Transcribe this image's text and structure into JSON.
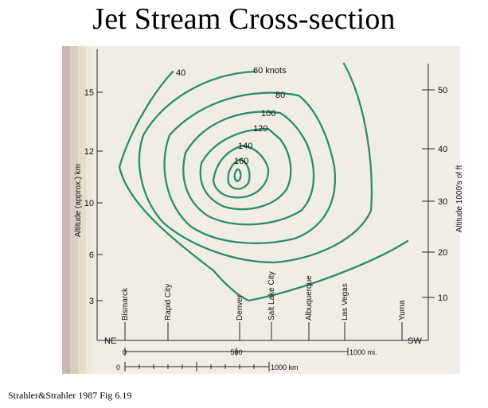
{
  "title": "Jet Stream Cross-section",
  "caption": "Strahler&Strahler 1987 Fig 6.19",
  "colors": {
    "isotach": "#2e8b6b",
    "paper": "#efede6",
    "ink": "#222222"
  },
  "left_axis": {
    "label": "Altitude (approx.) km",
    "ticks": [
      "15",
      "12",
      "10",
      "6",
      "3"
    ]
  },
  "right_axis": {
    "label": "Altitude  1000's of ft",
    "ticks": [
      "50",
      "40",
      "30",
      "20",
      "10"
    ]
  },
  "isotach_labels": {
    "l40": "40",
    "l60": "60 knots",
    "l80": "80",
    "l100": "100",
    "l120": "120",
    "l140": "140",
    "l160": "160"
  },
  "cities": [
    "Bismarck",
    "Rapid City",
    "Denver",
    "Salt Lake City",
    "Albuquerque",
    "Las Vegas",
    "Yuma"
  ],
  "direction": {
    "left": "NE",
    "right": "SW"
  },
  "scale_mi": {
    "zero": "0",
    "mid": "500",
    "end": "1000 mi."
  },
  "scale_km": {
    "zero": "0",
    "end": "1000 km"
  }
}
